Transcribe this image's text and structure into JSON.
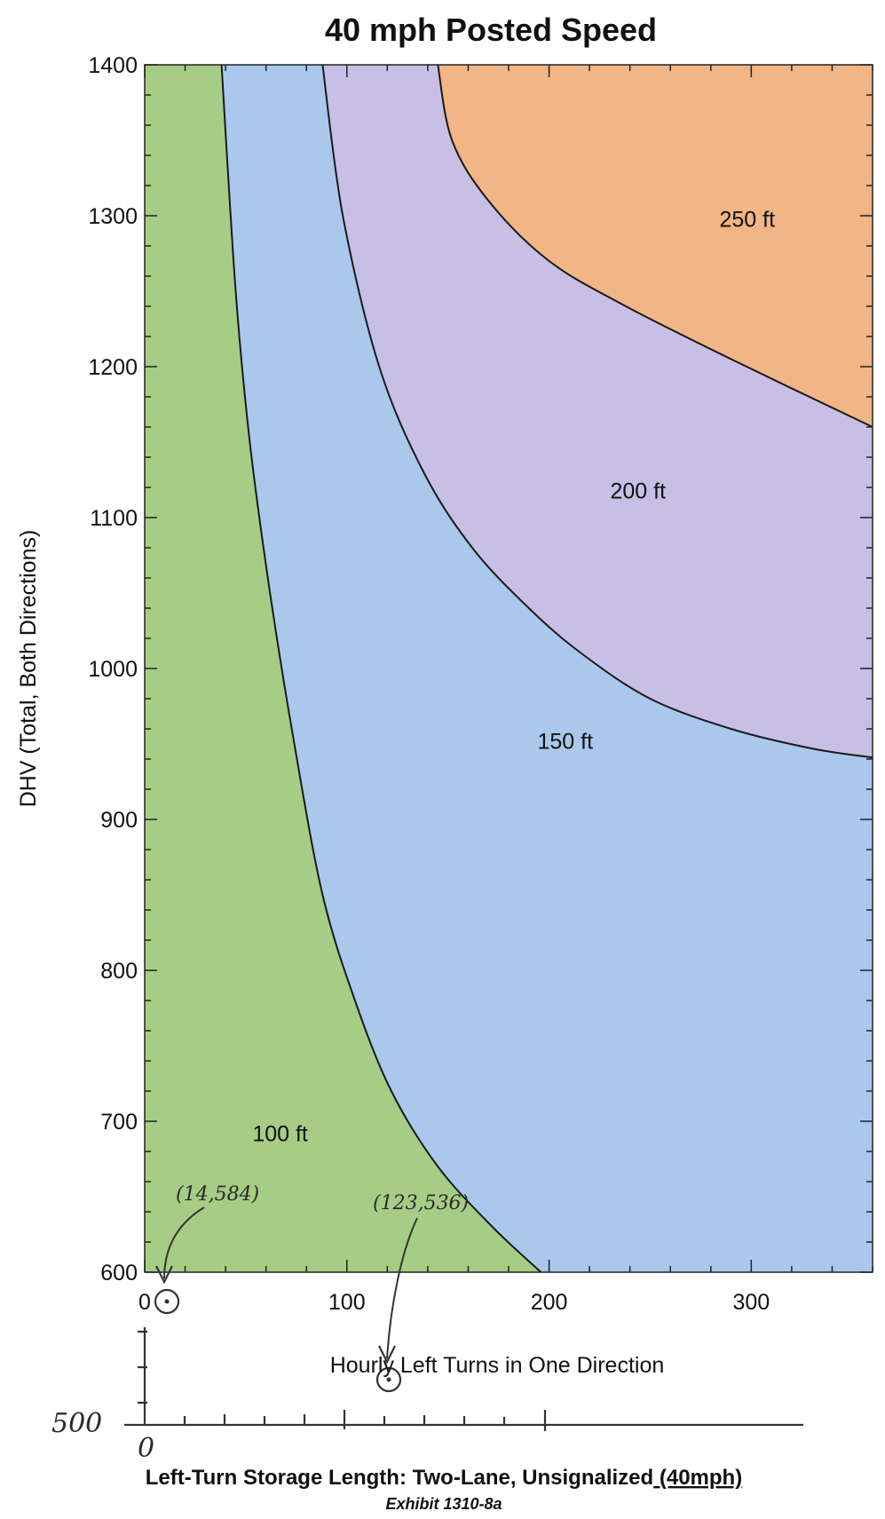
{
  "chart_data": {
    "type": "area",
    "title": "40 mph Posted Speed",
    "xlabel": "Hourly Left Turns in One Direction",
    "ylabel": "DHV (Total, Both Directions)",
    "xlim": [
      0,
      360
    ],
    "ylim": [
      600,
      1400
    ],
    "x_ticks": [
      "0",
      "100",
      "200",
      "300"
    ],
    "y_ticks": [
      "600",
      "700",
      "800",
      "900",
      "1000",
      "1100",
      "1200",
      "1300",
      "1400"
    ],
    "colors": {
      "100ft": "#a7cc85",
      "150ft": "#a9c8ec",
      "200ft": "#c7bfe6",
      "250ft": "#f2b585"
    },
    "regions": [
      {
        "label": "100 ft",
        "label_at": [
          67,
          692
        ]
      },
      {
        "label": "150 ft",
        "label_at": [
          208,
          952
        ]
      },
      {
        "label": "200 ft",
        "label_at": [
          244,
          1118
        ]
      },
      {
        "label": "250 ft",
        "label_at": [
          298,
          1298
        ]
      }
    ],
    "boundaries": [
      {
        "between": "100 ft / 150 ft",
        "points": [
          [
            38,
            1400
          ],
          [
            45,
            1250
          ],
          [
            52,
            1150
          ],
          [
            62,
            1050
          ],
          [
            74,
            950
          ],
          [
            88,
            850
          ],
          [
            104,
            780
          ],
          [
            122,
            720
          ],
          [
            145,
            670
          ],
          [
            172,
            630
          ],
          [
            196,
            600
          ]
        ]
      },
      {
        "between": "150 ft / 200 ft",
        "points": [
          [
            88,
            1400
          ],
          [
            98,
            1300
          ],
          [
            116,
            1200
          ],
          [
            138,
            1130
          ],
          [
            162,
            1080
          ],
          [
            190,
            1040
          ],
          [
            216,
            1010
          ],
          [
            250,
            980
          ],
          [
            290,
            960
          ],
          [
            330,
            947
          ],
          [
            360,
            941
          ]
        ]
      },
      {
        "between": "200 ft / 250 ft",
        "points": [
          [
            145,
            1400
          ],
          [
            152,
            1350
          ],
          [
            170,
            1310
          ],
          [
            200,
            1270
          ],
          [
            238,
            1240
          ],
          [
            290,
            1205
          ],
          [
            360,
            1160
          ]
        ]
      }
    ],
    "annotations": [
      {
        "text": "(14,584)",
        "x": 14,
        "y": 584
      },
      {
        "text": "(123,536)",
        "x": 123,
        "y": 536
      }
    ],
    "legend": "none",
    "grid": false
  },
  "handwritten": {
    "axis_extension_value": "500",
    "axis_extension_origin": "0"
  },
  "caption": {
    "main": "Left-Turn Storage Length: Two-Lane, Unsignalized",
    "suffix": " (40mph)",
    "exhibit": "Exhibit 1310-8a"
  }
}
